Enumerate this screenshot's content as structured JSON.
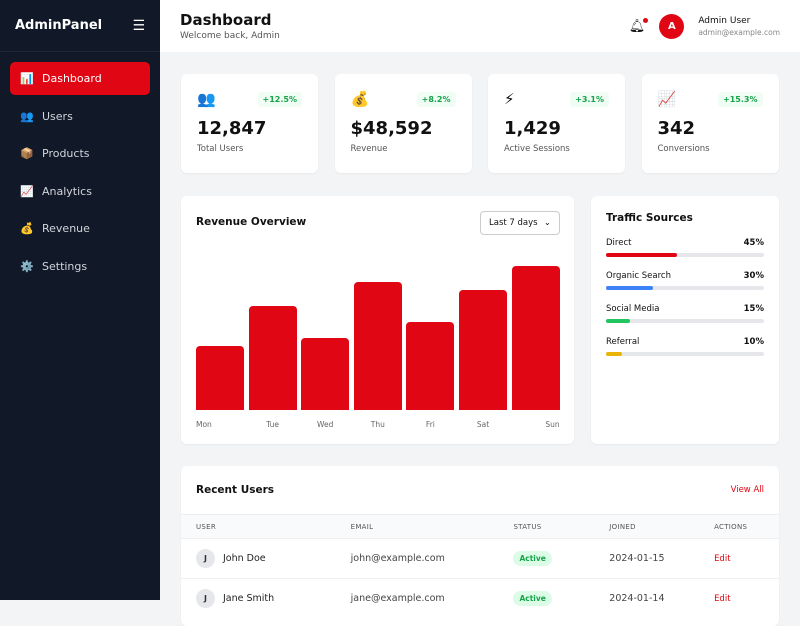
{
  "sidebar": {
    "brand": "AdminPanel",
    "items": [
      {
        "label": "Dashboard",
        "icon": "📊"
      },
      {
        "label": "Users",
        "icon": "👥"
      },
      {
        "label": "Products",
        "icon": "📦"
      },
      {
        "label": "Analytics",
        "icon": "📈"
      },
      {
        "label": "Revenue",
        "icon": "💰"
      },
      {
        "label": "Settings",
        "icon": "⚙️"
      }
    ]
  },
  "header": {
    "title": "Dashboard",
    "subtitle": "Welcome back, Admin",
    "user_name": "Admin User",
    "user_email": "admin@example.com",
    "avatar": "A"
  },
  "stats": [
    {
      "icon": "👥",
      "change": "+12.5%",
      "value": "12,847",
      "label": "Total Users"
    },
    {
      "icon": "💰",
      "change": "+8.2%",
      "value": "$48,592",
      "label": "Revenue"
    },
    {
      "icon": "⚡",
      "change": "+3.1%",
      "value": "1,429",
      "label": "Active Sessions"
    },
    {
      "icon": "📈",
      "change": "+15.3%",
      "value": "342",
      "label": "Conversions"
    }
  ],
  "revenue": {
    "title": "Revenue Overview",
    "range": "Last 7 days"
  },
  "chart_data": {
    "type": "bar",
    "categories": [
      "Mon",
      "Tue",
      "Wed",
      "Thu",
      "Fri",
      "Sat",
      "Sun"
    ],
    "values": [
      4000,
      6500,
      4500,
      8000,
      5500,
      7500,
      9000
    ],
    "ylim": [
      0,
      10000
    ],
    "color": "#e10613",
    "grid": false
  },
  "traffic": {
    "title": "Traffic Sources",
    "items": [
      {
        "label": "Direct",
        "pct": "45%",
        "value": 45,
        "color": "#e10613"
      },
      {
        "label": "Organic Search",
        "pct": "30%",
        "value": 30,
        "color": "#3b82f6"
      },
      {
        "label": "Social Media",
        "pct": "15%",
        "value": 15,
        "color": "#22c55e"
      },
      {
        "label": "Referral",
        "pct": "10%",
        "value": 10,
        "color": "#eab308"
      }
    ]
  },
  "recent": {
    "title": "Recent Users",
    "view_all": "View All",
    "columns": [
      "USER",
      "EMAIL",
      "STATUS",
      "JOINED",
      "ACTIONS"
    ],
    "rows": [
      {
        "initial": "J",
        "name": "John Doe",
        "email": "john@example.com",
        "status": "Active",
        "joined": "2024-01-15",
        "action": "Edit"
      },
      {
        "initial": "J",
        "name": "Jane Smith",
        "email": "jane@example.com",
        "status": "Active",
        "joined": "2024-01-14",
        "action": "Edit"
      }
    ]
  }
}
